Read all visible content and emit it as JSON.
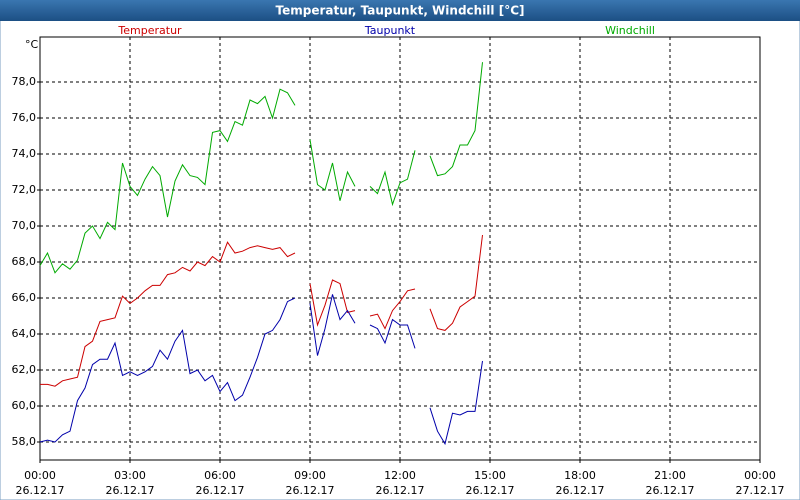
{
  "chart_data": {
    "type": "line",
    "title": "Temperatur, Taupunkt, Windchill [°C]",
    "y_unit": "°C",
    "x": [
      0,
      0.25,
      0.5,
      0.75,
      1,
      1.25,
      1.5,
      1.75,
      2,
      2.25,
      2.5,
      2.75,
      3,
      3.25,
      3.5,
      3.75,
      4,
      4.25,
      4.5,
      4.75,
      5,
      5.25,
      5.5,
      5.75,
      6,
      6.25,
      6.5,
      6.75,
      7,
      7.25,
      7.5,
      7.75,
      8,
      8.25,
      8.5,
      8.75,
      9,
      9.25,
      9.5,
      9.75,
      10,
      10.25,
      10.5,
      10.75,
      11,
      11.25,
      11.5,
      11.75,
      12,
      12.25,
      12.5,
      12.75,
      13,
      13.25,
      13.5,
      13.75,
      14,
      14.25,
      14.5,
      14.75
    ],
    "series": [
      {
        "name": "Temperatur",
        "color": "#cc0000",
        "values": [
          61.2,
          61.2,
          61.1,
          61.4,
          61.5,
          61.6,
          63.3,
          63.6,
          64.7,
          64.8,
          64.9,
          66.1,
          65.7,
          66.0,
          66.4,
          66.7,
          66.7,
          67.3,
          67.4,
          67.7,
          67.5,
          68.0,
          67.8,
          68.3,
          68.0,
          69.1,
          68.5,
          68.6,
          68.8,
          68.9,
          68.8,
          68.7,
          68.8,
          68.3,
          68.5,
          null,
          66.8,
          64.5,
          65.6,
          67.0,
          66.8,
          65.2,
          65.3,
          null,
          65.0,
          65.1,
          64.3,
          65.3,
          65.8,
          66.4,
          66.5,
          null,
          65.4,
          64.3,
          64.2,
          64.6,
          65.5,
          65.8,
          66.1,
          69.5
        ]
      },
      {
        "name": "Taupunkt",
        "color": "#0000aa",
        "values": [
          58.0,
          58.1,
          58.0,
          58.4,
          58.6,
          60.3,
          61.0,
          62.3,
          62.6,
          62.6,
          63.5,
          61.7,
          61.9,
          61.7,
          61.9,
          62.2,
          63.1,
          62.6,
          63.6,
          64.2,
          61.8,
          62.0,
          61.4,
          61.7,
          60.8,
          61.3,
          60.3,
          60.6,
          61.6,
          62.7,
          64.0,
          64.2,
          64.8,
          65.8,
          66.0,
          null,
          65.7,
          62.8,
          64.3,
          66.2,
          64.8,
          65.3,
          64.6,
          null,
          64.5,
          64.3,
          63.5,
          64.8,
          64.5,
          64.5,
          63.2,
          null,
          59.9,
          58.6,
          57.9,
          59.6,
          59.5,
          59.7,
          59.7,
          62.5
        ]
      },
      {
        "name": "Windchill",
        "color": "#00aa00",
        "values": [
          67.8,
          68.5,
          67.4,
          67.9,
          67.6,
          68.1,
          69.6,
          70.0,
          69.3,
          70.2,
          69.8,
          73.5,
          72.2,
          71.7,
          72.6,
          73.3,
          72.8,
          70.5,
          72.5,
          73.4,
          72.8,
          72.7,
          72.3,
          75.2,
          75.3,
          74.7,
          75.8,
          75.6,
          77.0,
          76.8,
          77.2,
          76.0,
          77.6,
          77.4,
          76.7,
          null,
          74.8,
          72.3,
          72.0,
          73.5,
          71.4,
          73.0,
          72.2,
          null,
          72.2,
          71.8,
          73.0,
          71.2,
          72.4,
          72.6,
          74.2,
          null,
          73.9,
          72.8,
          72.9,
          73.3,
          74.5,
          74.5,
          75.3,
          79.1
        ]
      }
    ],
    "xlim": [
      0,
      24
    ],
    "xticks": [
      {
        "value": 0,
        "label": "00:00",
        "date": "26.12.17"
      },
      {
        "value": 3,
        "label": "03:00",
        "date": "26.12.17"
      },
      {
        "value": 6,
        "label": "06:00",
        "date": "26.12.17"
      },
      {
        "value": 9,
        "label": "09:00",
        "date": "26.12.17"
      },
      {
        "value": 12,
        "label": "12:00",
        "date": "26.12.17"
      },
      {
        "value": 15,
        "label": "15:00",
        "date": "26.12.17"
      },
      {
        "value": 18,
        "label": "18:00",
        "date": "26.12.17"
      },
      {
        "value": 21,
        "label": "21:00",
        "date": "26.12.17"
      },
      {
        "value": 24,
        "label": "00:00",
        "date": "27.12.17"
      }
    ],
    "ylim": [
      57,
      80.5
    ],
    "yticks": [
      {
        "value": 58,
        "label": "58,0"
      },
      {
        "value": 60,
        "label": "60,0"
      },
      {
        "value": 62,
        "label": "62,0"
      },
      {
        "value": 64,
        "label": "64,0"
      },
      {
        "value": 66,
        "label": "66,0"
      },
      {
        "value": 68,
        "label": "68,0"
      },
      {
        "value": 70,
        "label": "70,0"
      },
      {
        "value": 72,
        "label": "72,0"
      },
      {
        "value": 74,
        "label": "74,0"
      },
      {
        "value": 76,
        "label": "76,0"
      },
      {
        "value": 78,
        "label": "78,0"
      }
    ],
    "grid": true
  }
}
